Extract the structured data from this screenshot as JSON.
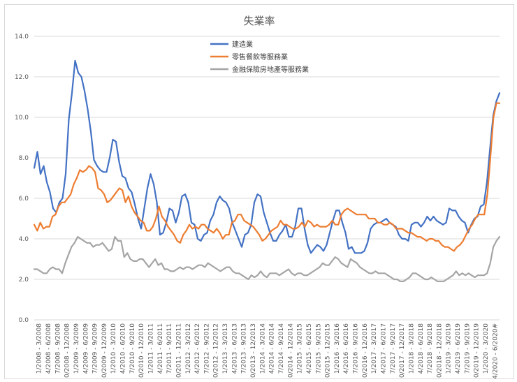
{
  "chart_data": {
    "type": "line",
    "title": "失業率",
    "xlabel": "",
    "ylabel": "",
    "ylim": [
      0,
      14
    ],
    "y_ticks": [
      "0.0",
      "2.0",
      "4.0",
      "6.0",
      "8.0",
      "10.0",
      "12.0",
      "14.0"
    ],
    "grid": true,
    "legend_position": "top-center",
    "x_tick_labels": [
      "1/2008 - 3/2008",
      "4/2008 - 6/2008",
      "7/2008 - 9/2008",
      "10/2008 - 12/2008",
      "1/2009 - 3/2009",
      "4/2009 - 6/2009",
      "7/2009 - 9/2009",
      "10/2009 - 12/2009",
      "1/2010 - 3/2010",
      "4/2010 - 6/2010",
      "7/2010 - 9/2010",
      "10/2010 - 12/2010",
      "1/2011 - 3/2011",
      "4/2011 - 6/2011",
      "7/2011 - 9/2011",
      "10/2011 - 12/2011",
      "1/2012 - 3/2012",
      "4/2012 - 6/2012",
      "7/2012 - 9/2012",
      "10/2012 - 12/2012",
      "1/2013 - 3/2013",
      "4/2013 - 6/2013",
      "7/2013 - 9/2013",
      "10/2013 - 12/2013",
      "1/2014 - 3/2014",
      "4/2014 - 6/2014",
      "7/2014 - 9/2014",
      "10/2014 - 12/2014",
      "1/2015 - 3/2015",
      "4/2015 - 6/2015",
      "7/2015 - 9/2015",
      "10/2015 - 12/2015",
      "1/2016 - 3/2016",
      "4/2016 - 6/2016",
      "7/2016 - 9/2016",
      "10/2016 - 12/2016",
      "1/2017 - 3/2017",
      "4/2017 - 6/2017",
      "7/2017 - 9/2017",
      "10/2017 - 12/2017",
      "1/2018 - 3/2018",
      "4/2018 - 6/2018",
      "7/2018 - 9/2018",
      "10/2018 - 12/2018",
      "1/2019 - 3/2019",
      "4/2019 - 6/2019",
      "7/2019 - 9/2019",
      "10/2019 - 12/2019",
      "1/2020 - 3/2020",
      "4/2020 - 6/2020#"
    ],
    "series": [
      {
        "name": "建造業",
        "color": "#4472c4",
        "values": [
          7.5,
          8.3,
          7.2,
          7.6,
          6.8,
          6.3,
          5.5,
          5.3,
          5.8,
          6.0,
          7.2,
          9.9,
          11.2,
          12.8,
          12.2,
          12.0,
          11.3,
          10.4,
          9.3,
          7.9,
          7.6,
          7.4,
          7.3,
          7.3,
          8.0,
          8.9,
          8.8,
          7.8,
          7.1,
          7.0,
          6.5,
          6.3,
          5.7,
          5.0,
          4.5,
          5.5,
          6.5,
          7.2,
          6.7,
          5.8,
          4.2,
          4.3,
          4.8,
          5.5,
          5.4,
          4.8,
          5.3,
          6.1,
          6.2,
          5.8,
          4.8,
          4.7,
          4.0,
          3.9,
          4.2,
          4.3,
          4.9,
          5.2,
          5.8,
          6.1,
          5.9,
          5.8,
          5.5,
          4.8,
          4.4,
          4.0,
          3.6,
          4.2,
          4.3,
          4.7,
          5.8,
          6.2,
          6.1,
          5.3,
          4.8,
          4.3,
          3.9,
          3.9,
          4.2,
          4.4,
          4.7,
          4.1,
          4.1,
          4.6,
          5.5,
          5.5,
          4.5,
          3.7,
          3.3,
          3.5,
          3.7,
          3.6,
          3.4,
          3.7,
          4.3,
          4.9,
          5.4,
          5.4,
          4.8,
          4.3,
          3.5,
          3.6,
          3.3,
          3.3,
          3.3,
          3.4,
          3.8,
          4.5,
          4.7,
          4.8,
          4.8,
          4.9,
          5.0,
          4.8,
          4.7,
          4.6,
          4.2,
          4.0,
          4.0,
          3.9,
          4.7,
          4.8,
          4.8,
          4.6,
          4.8,
          5.1,
          4.9,
          5.1,
          4.9,
          4.8,
          4.7,
          4.8,
          5.5,
          5.4,
          5.4,
          5.1,
          4.9,
          4.8,
          4.3,
          4.7,
          5.0,
          5.1,
          5.6,
          5.7,
          6.8,
          8.5,
          10.1,
          10.8,
          11.2
        ]
      },
      {
        "name": "零售餐飲等服務業",
        "color": "#ed7d31",
        "values": [
          4.7,
          4.4,
          4.8,
          4.5,
          4.6,
          4.6,
          5.1,
          5.2,
          5.6,
          5.8,
          5.8,
          6.0,
          6.2,
          6.7,
          7.0,
          7.4,
          7.3,
          7.4,
          7.6,
          7.5,
          7.3,
          6.5,
          6.4,
          6.2,
          5.8,
          5.9,
          6.1,
          6.3,
          6.5,
          6.4,
          5.8,
          6.1,
          5.6,
          5.3,
          5.1,
          4.9,
          4.8,
          4.4,
          4.4,
          4.6,
          5.0,
          5.6,
          5.1,
          4.9,
          4.6,
          4.4,
          4.2,
          3.9,
          3.8,
          4.2,
          4.4,
          4.7,
          4.5,
          4.6,
          4.5,
          4.7,
          4.7,
          4.5,
          4.4,
          4.3,
          4.5,
          4.3,
          4.0,
          4.2,
          4.2,
          4.8,
          4.9,
          5.2,
          5.2,
          4.9,
          4.8,
          4.7,
          4.6,
          4.4,
          4.2,
          3.9,
          4.0,
          4.2,
          4.4,
          4.5,
          4.6,
          4.9,
          4.7,
          4.7,
          4.6,
          4.5,
          4.5,
          4.6,
          4.8,
          4.6,
          4.9,
          4.8,
          4.6,
          4.7,
          4.6,
          4.6,
          4.6,
          4.7,
          4.9,
          4.7,
          4.7,
          5.2,
          5.4,
          5.5,
          5.4,
          5.3,
          5.2,
          5.2,
          5.2,
          5.2,
          5.0,
          5.0,
          5.0,
          4.8,
          4.8,
          4.7,
          4.7,
          4.8,
          4.7,
          4.5,
          4.5,
          4.5,
          4.4,
          4.3,
          4.3,
          4.2,
          4.1,
          4.1,
          4.0,
          3.9,
          4.0,
          4.0,
          3.9,
          3.9,
          3.7,
          3.6,
          3.6,
          3.5,
          3.4,
          3.6,
          3.7,
          3.9,
          4.2,
          4.5,
          4.7,
          5.0,
          5.2,
          5.2,
          5.2,
          6.2,
          8.0,
          10.0,
          10.7,
          10.7
        ]
      },
      {
        "name": "金融保險房地產等服務業",
        "color": "#a5a5a5",
        "values": [
          2.5,
          2.5,
          2.4,
          2.3,
          2.3,
          2.5,
          2.6,
          2.5,
          2.5,
          2.3,
          2.8,
          3.2,
          3.6,
          3.8,
          4.1,
          4.0,
          3.9,
          3.8,
          3.8,
          3.6,
          3.7,
          3.7,
          3.8,
          3.6,
          3.4,
          3.5,
          4.1,
          3.9,
          3.9,
          3.1,
          3.3,
          3.0,
          2.9,
          2.9,
          3.0,
          3.0,
          2.8,
          2.6,
          2.8,
          3.0,
          2.7,
          2.8,
          2.5,
          2.5,
          2.4,
          2.4,
          2.5,
          2.6,
          2.5,
          2.6,
          2.6,
          2.5,
          2.6,
          2.7,
          2.7,
          2.6,
          2.8,
          2.7,
          2.6,
          2.5,
          2.4,
          2.5,
          2.6,
          2.6,
          2.4,
          2.3,
          2.3,
          2.2,
          2.1,
          2.0,
          2.2,
          2.1,
          2.2,
          2.4,
          2.2,
          2.1,
          2.3,
          2.3,
          2.3,
          2.2,
          2.3,
          2.4,
          2.5,
          2.3,
          2.2,
          2.3,
          2.3,
          2.2,
          2.2,
          2.3,
          2.4,
          2.5,
          2.6,
          2.8,
          2.7,
          2.7,
          2.9,
          3.1,
          3.0,
          2.8,
          2.7,
          2.6,
          3.0,
          2.9,
          2.8,
          2.6,
          2.5,
          2.4,
          2.3,
          2.3,
          2.4,
          2.3,
          2.3,
          2.3,
          2.2,
          2.1,
          2.0,
          2.0,
          1.9,
          1.9,
          2.0,
          2.1,
          2.3,
          2.3,
          2.2,
          2.1,
          2.0,
          2.0,
          2.1,
          2.0,
          1.9,
          1.9,
          1.9,
          2.0,
          2.1,
          2.2,
          2.4,
          2.2,
          2.3,
          2.2,
          2.3,
          2.2,
          2.1,
          2.2,
          2.2,
          2.2,
          2.3,
          2.8,
          3.6,
          3.9,
          4.1
        ]
      }
    ]
  }
}
